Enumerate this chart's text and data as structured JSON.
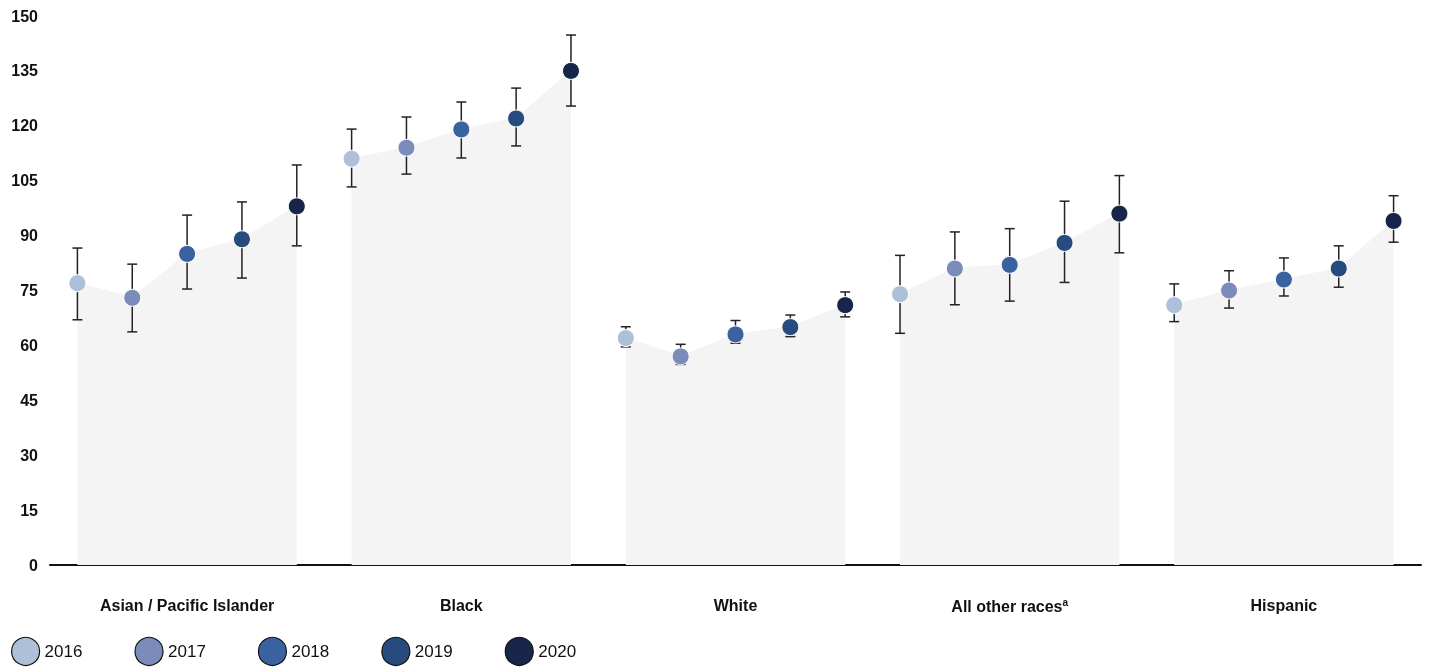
{
  "chart_data": {
    "type": "scatter",
    "categories": [
      null,
      null,
      "Asian / Pacific Islander",
      null,
      null,
      null,
      null,
      "Black",
      null,
      null,
      null,
      null,
      "White",
      null,
      null,
      null,
      null,
      "All other races$^{a}$",
      null,
      null,
      null,
      null,
      "Hispanic",
      null,
      null
    ],
    "series": [
      {
        "type": "area",
        "color": "#f4f4f4",
        "values": [
          77,
          73,
          85,
          89,
          98,
          null,
          null,
          null,
          null,
          null,
          null,
          null,
          null,
          null,
          null,
          null,
          null,
          null,
          null,
          null,
          null,
          null,
          null,
          null,
          null
        ]
      },
      {
        "type": "area",
        "color": "#f4f4f4",
        "values": [
          null,
          null,
          null,
          null,
          null,
          111,
          114,
          119,
          122,
          135,
          null,
          null,
          null,
          null,
          null,
          null,
          null,
          null,
          null,
          null,
          null,
          null,
          null,
          null,
          null
        ]
      },
      {
        "type": "area",
        "color": "#f4f4f4",
        "values": [
          null,
          null,
          null,
          null,
          null,
          null,
          null,
          null,
          null,
          null,
          62,
          57,
          63,
          65,
          71,
          null,
          null,
          null,
          null,
          null,
          null,
          null,
          null,
          null,
          null
        ]
      },
      {
        "type": "area",
        "color": "#f4f4f4",
        "values": [
          null,
          null,
          null,
          null,
          null,
          null,
          null,
          null,
          null,
          null,
          null,
          null,
          null,
          null,
          null,
          74,
          81,
          82,
          88,
          96,
          null,
          null,
          null,
          null,
          null
        ]
      },
      {
        "type": "area",
        "color": "#f4f4f4",
        "values": [
          null,
          null,
          null,
          null,
          null,
          null,
          null,
          null,
          null,
          null,
          null,
          null,
          null,
          null,
          null,
          null,
          null,
          null,
          null,
          null,
          71,
          75,
          78,
          81,
          94
        ]
      },
      {
        "name": "2016",
        "marker": "circle",
        "color": "#adc0d9",
        "values": [
          77,
          null,
          null,
          null,
          null,
          111,
          null,
          null,
          null,
          null,
          62,
          null,
          null,
          null,
          null,
          74,
          null,
          null,
          null,
          null,
          71,
          null,
          null,
          null,
          null
        ],
        "errors": [
          [
            67,
            86.6
          ],
          null,
          null,
          null,
          null,
          [
            103.3,
            119.1
          ],
          null,
          null,
          null,
          null,
          [
            59.6,
            65.1
          ],
          null,
          null,
          null,
          null,
          [
            63.3,
            84.6
          ],
          null,
          null,
          null,
          null,
          [
            66.5,
            76.8
          ],
          null,
          null,
          null,
          null
        ]
      },
      {
        "name": "2017",
        "marker": "circle",
        "color": "#7b8cbb",
        "values": [
          null,
          73,
          null,
          null,
          null,
          null,
          114,
          null,
          null,
          null,
          null,
          57,
          null,
          null,
          null,
          null,
          81,
          null,
          null,
          null,
          null,
          75,
          null,
          null,
          null
        ],
        "errors": [
          null,
          [
            63.7,
            82.2
          ],
          null,
          null,
          null,
          null,
          [
            106.8,
            122.4
          ],
          null,
          null,
          null,
          null,
          [
            54.8,
            60.3
          ],
          null,
          null,
          null,
          null,
          [
            71.1,
            91
          ],
          null,
          null,
          null,
          null,
          [
            70.2,
            80.4
          ],
          null,
          null,
          null
        ]
      },
      {
        "name": "2018",
        "marker": "circle",
        "color": "#3a62a0",
        "values": [
          null,
          null,
          85,
          null,
          null,
          null,
          null,
          119,
          null,
          null,
          null,
          null,
          63,
          null,
          null,
          null,
          null,
          82,
          null,
          null,
          null,
          null,
          78,
          null,
          null
        ],
        "errors": [
          null,
          null,
          [
            75.4,
            95.6
          ],
          null,
          null,
          null,
          null,
          [
            111.2,
            126.5
          ],
          null,
          null,
          null,
          null,
          [
            60.6,
            66.8
          ],
          null,
          null,
          null,
          null,
          [
            72.1,
            91.9
          ],
          null,
          null,
          null,
          null,
          [
            73.5,
            83.9
          ],
          null,
          null
        ]
      },
      {
        "name": "2019",
        "marker": "circle",
        "color": "#284b7d",
        "values": [
          null,
          null,
          null,
          89,
          null,
          null,
          null,
          null,
          122,
          null,
          null,
          null,
          null,
          65,
          null,
          null,
          null,
          null,
          88,
          null,
          null,
          null,
          null,
          81,
          null
        ],
        "errors": [
          null,
          null,
          null,
          [
            78.4,
            99.2
          ],
          null,
          null,
          null,
          null,
          [
            114.5,
            130.3
          ],
          null,
          null,
          null,
          null,
          [
            62.4,
            68.3
          ],
          null,
          null,
          null,
          null,
          [
            77.2,
            99.4
          ],
          null,
          null,
          null,
          null,
          [
            75.9,
            87.2
          ],
          null
        ]
      },
      {
        "name": "2020",
        "marker": "circle",
        "color": "#172548",
        "values": [
          null,
          null,
          null,
          null,
          98,
          null,
          null,
          null,
          null,
          135,
          null,
          null,
          null,
          null,
          71,
          null,
          null,
          null,
          null,
          96,
          null,
          null,
          null,
          null,
          94
        ],
        "errors": [
          null,
          null,
          null,
          null,
          [
            87.2,
            109.3
          ],
          null,
          null,
          null,
          null,
          [
            125.4,
            144.8
          ],
          null,
          null,
          null,
          null,
          [
            67.8,
            74.6
          ],
          null,
          null,
          null,
          null,
          [
            85.3,
            106.4
          ],
          null,
          null,
          null,
          null,
          [
            88.2,
            100.9
          ]
        ]
      }
    ],
    "ylim": [
      0,
      150
    ],
    "yticks": [
      0,
      15,
      30,
      45,
      60,
      75,
      90,
      105,
      120,
      135,
      150
    ],
    "grid": false,
    "legend": "bottom left"
  }
}
